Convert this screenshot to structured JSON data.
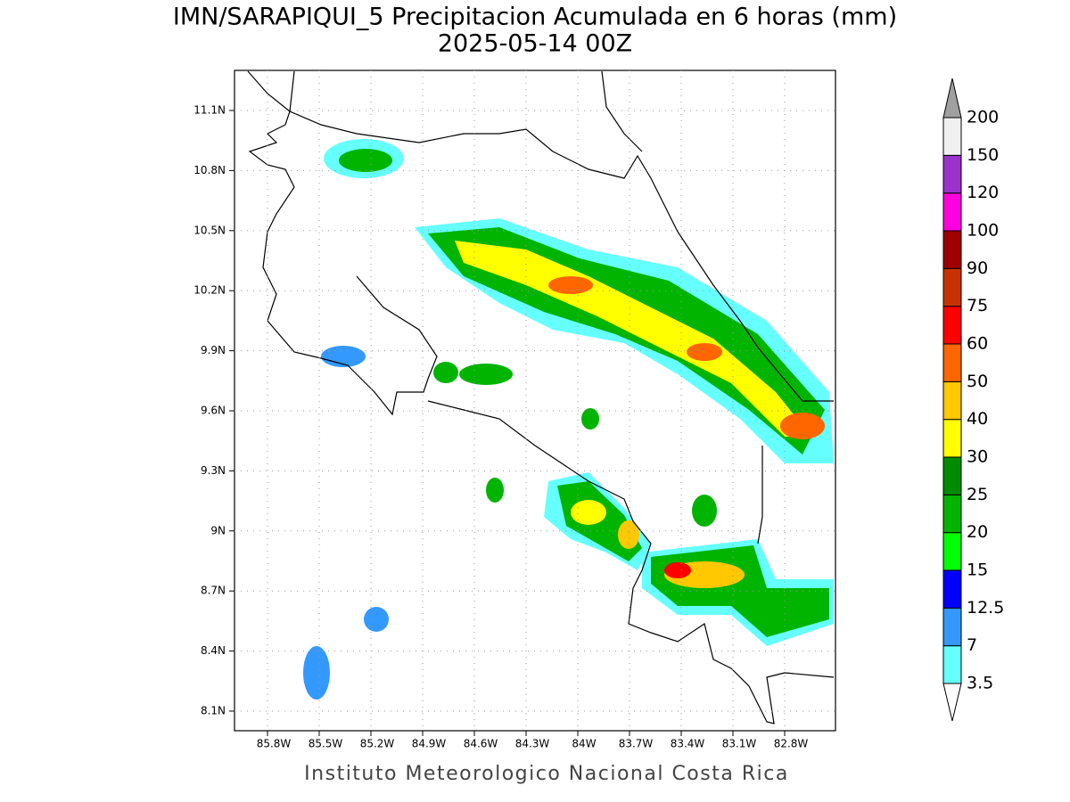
{
  "title": "IMN/SARAPIQUI_5 Precipitacion Acumulada en 6 horas (mm)",
  "subtitle": "2025-05-14 00Z",
  "map": {
    "lat_labels": [
      "11.1N",
      "10.8N",
      "10.5N",
      "10.2N",
      "9.9N",
      "9.6N",
      "9.3N",
      "9N",
      "8.7N",
      "8.4N",
      "8.1N"
    ],
    "lon_labels": [
      "85.8W",
      "85.5W",
      "85.2W",
      "84.9W",
      "84.6W",
      "84.3W",
      "84W",
      "83.7W",
      "83.4W",
      "83.1W",
      "82.8W"
    ]
  },
  "colorbar": {
    "levels": [
      3.5,
      7,
      12.5,
      15,
      20,
      25,
      30,
      40,
      50,
      60,
      75,
      90,
      100,
      120,
      150,
      200
    ],
    "colors": [
      "#66ffff",
      "#3399ff",
      "#0000ff",
      "#00ff00",
      "#00b400",
      "#008c00",
      "#ffff00",
      "#ffc800",
      "#ff6600",
      "#ff0000",
      "#c83200",
      "#a00000",
      "#ff00e0",
      "#9933cc",
      "#f0f0f0"
    ]
  },
  "footer": "Instituto Meteorologico Nacional Costa Rica"
}
